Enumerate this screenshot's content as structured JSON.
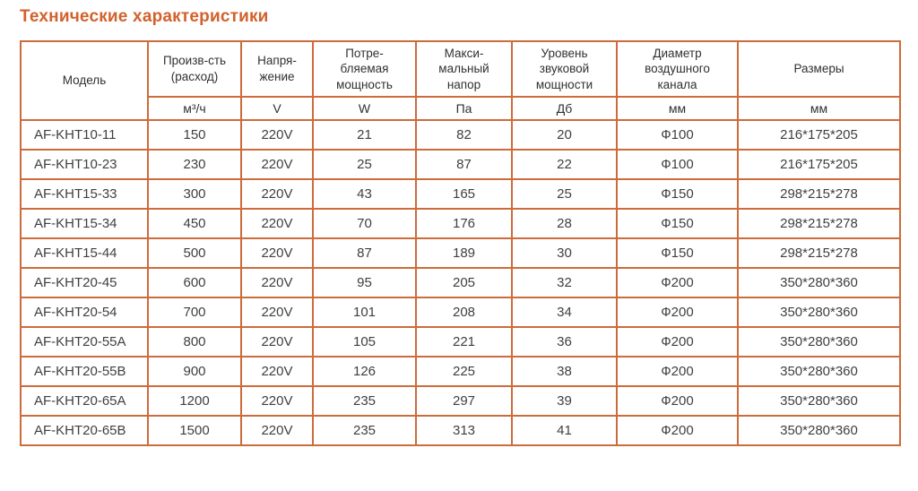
{
  "section": {
    "title": "Технические характеристики"
  },
  "colors": {
    "accent": "#d2612b",
    "table_border": "#ce6b3b",
    "text": "#3a3a3a",
    "background": "#ffffff"
  },
  "table": {
    "columns": [
      {
        "label": "Модель",
        "unit": ""
      },
      {
        "label": "Произв-сть\n(расход)",
        "unit": "м³/ч"
      },
      {
        "label": "Напря-\nжение",
        "unit": "V"
      },
      {
        "label": "Потре-\nбляемая\nмощность",
        "unit": "W"
      },
      {
        "label": "Макси-\nмальный\nнапор",
        "unit": "Па"
      },
      {
        "label": "Уровень\nзвуковой\nмощности",
        "unit": "Дб"
      },
      {
        "label": "Диаметр\nвоздушного\nканала",
        "unit": "мм"
      },
      {
        "label": "Размеры",
        "unit": "мм"
      }
    ],
    "rows": [
      [
        "AF-KHT10-11",
        "150",
        "220V",
        "21",
        "82",
        "20",
        "Ф100",
        "216*175*205"
      ],
      [
        "AF-KHT10-23",
        "230",
        "220V",
        "25",
        "87",
        "22",
        "Ф100",
        "216*175*205"
      ],
      [
        "AF-KHT15-33",
        "300",
        "220V",
        "43",
        "165",
        "25",
        "Ф150",
        "298*215*278"
      ],
      [
        "AF-KHT15-34",
        "450",
        "220V",
        "70",
        "176",
        "28",
        "Ф150",
        "298*215*278"
      ],
      [
        "AF-KHT15-44",
        "500",
        "220V",
        "87",
        "189",
        "30",
        "Ф150",
        "298*215*278"
      ],
      [
        "AF-KHT20-45",
        "600",
        "220V",
        "95",
        "205",
        "32",
        "Ф200",
        "350*280*360"
      ],
      [
        "AF-KHT20-54",
        "700",
        "220V",
        "101",
        "208",
        "34",
        "Ф200",
        "350*280*360"
      ],
      [
        "AF-KHT20-55A",
        "800",
        "220V",
        "105",
        "221",
        "36",
        "Ф200",
        "350*280*360"
      ],
      [
        "AF-KHT20-55B",
        "900",
        "220V",
        "126",
        "225",
        "38",
        "Ф200",
        "350*280*360"
      ],
      [
        "AF-KHT20-65A",
        "1200",
        "220V",
        "235",
        "297",
        "39",
        "Ф200",
        "350*280*360"
      ],
      [
        "AF-KHT20-65B",
        "1500",
        "220V",
        "235",
        "313",
        "41",
        "Ф200",
        "350*280*360"
      ]
    ]
  }
}
